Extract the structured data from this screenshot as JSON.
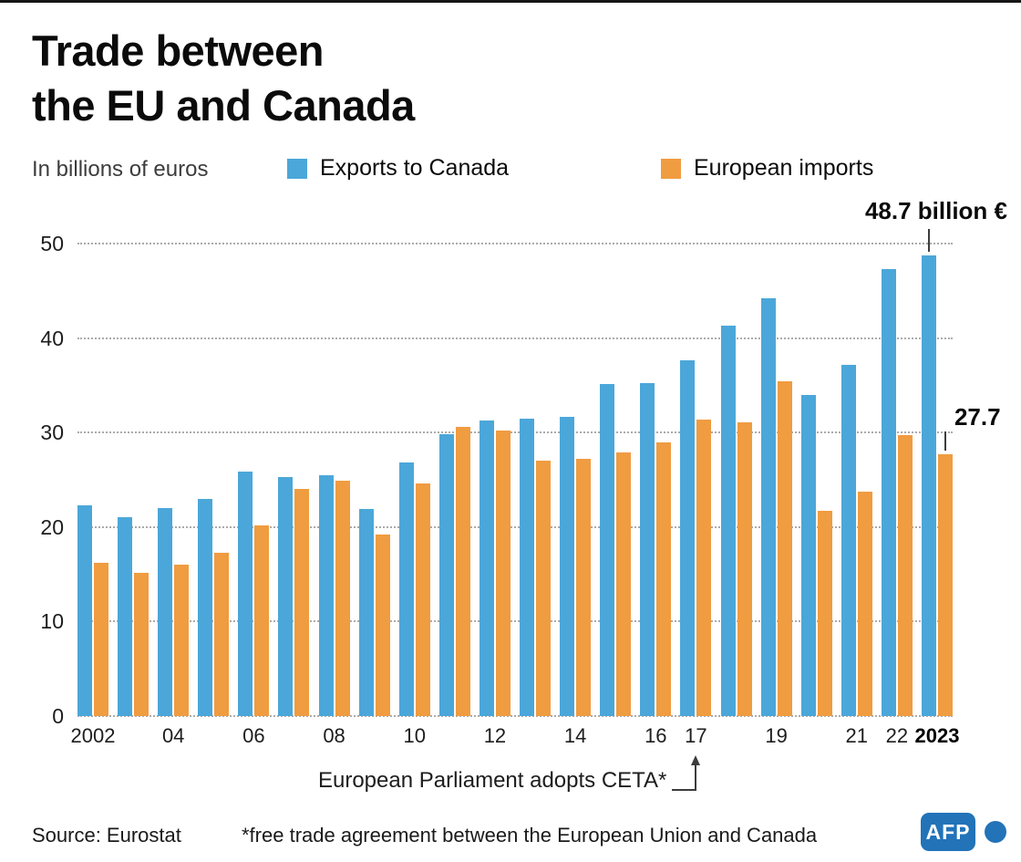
{
  "header": {
    "title_line1": "Trade between",
    "title_line2": "the EU and Canada",
    "subtitle": "In billions of euros"
  },
  "legend": [
    {
      "label": "Exports to Canada",
      "color": "#4ba7d9"
    },
    {
      "label": "European imports",
      "color": "#f09c41"
    }
  ],
  "chart_data": {
    "type": "bar",
    "title": "Trade between the EU and Canada",
    "unit": "In billions of euros",
    "categories": [
      "2002",
      "2003",
      "2004",
      "2005",
      "2006",
      "2007",
      "2008",
      "2009",
      "2010",
      "2011",
      "2012",
      "2013",
      "2014",
      "2015",
      "2016",
      "2017",
      "2018",
      "2019",
      "2020",
      "2021",
      "2022",
      "2023"
    ],
    "x_tick_labels": [
      "2002",
      "",
      "04",
      "",
      "06",
      "",
      "08",
      "",
      "10",
      "",
      "12",
      "",
      "14",
      "",
      "16",
      "17",
      "",
      "19",
      "",
      "21",
      "22",
      "2023"
    ],
    "series": [
      {
        "name": "Exports to Canada",
        "color": "#4ba7d9",
        "values": [
          22.3,
          21.0,
          22.0,
          23.0,
          25.9,
          25.3,
          25.5,
          21.9,
          26.8,
          29.8,
          31.3,
          31.5,
          31.7,
          35.1,
          35.2,
          37.6,
          41.3,
          44.2,
          34.0,
          37.2,
          47.3,
          48.7
        ]
      },
      {
        "name": "European imports",
        "color": "#f09c41",
        "values": [
          16.2,
          15.2,
          16.0,
          17.3,
          20.2,
          24.0,
          24.9,
          19.2,
          24.6,
          30.6,
          30.2,
          27.0,
          27.2,
          27.9,
          29.0,
          31.4,
          31.1,
          35.4,
          21.7,
          23.7,
          29.7,
          27.7
        ]
      }
    ],
    "ylim": [
      0,
      50
    ],
    "yticks": [
      0,
      10,
      20,
      30,
      40,
      50
    ],
    "grid": "dotted-horizontal",
    "legend_position": "top",
    "annotations": {
      "exports_peak": "48.7 billion €",
      "imports_last": "27.7",
      "ceta": "European Parliament adopts CETA*"
    }
  },
  "footer": {
    "source": "Source: Eurostat",
    "footnote": "*free trade agreement between the European Union and Canada",
    "logo": "AFP"
  }
}
